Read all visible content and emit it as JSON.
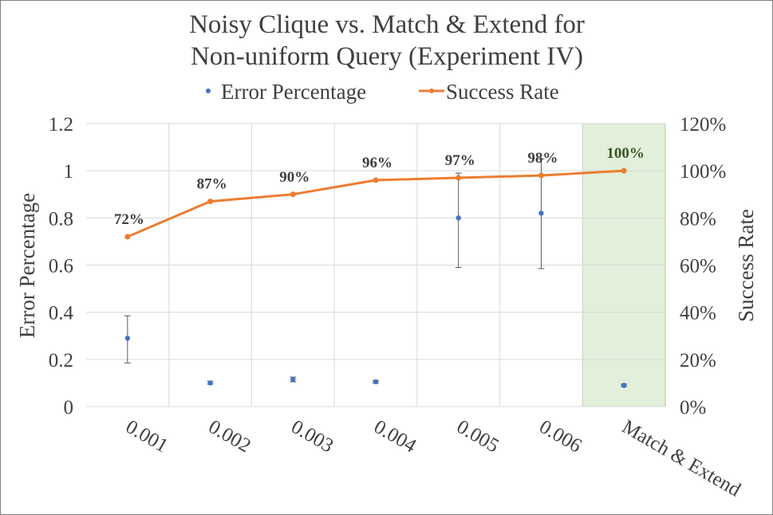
{
  "chart_data": {
    "type": "scatter",
    "title_line1": "Noisy Clique vs. Match & Extend for",
    "title_line2": "Non-uniform Query (Experiment IV)",
    "ylabel_left": "Error Percentage",
    "ylabel_right": "Success Rate",
    "categories": [
      "0.001",
      "0.002",
      "0.003",
      "0.004",
      "0.005",
      "0.006",
      "Match & Extend"
    ],
    "highlight_category": "Match & Extend",
    "highlight_color": "#e2efda",
    "legend_position": "top",
    "grid": true,
    "left_axis": {
      "min": 0,
      "max": 1.2,
      "step": 0.2,
      "ticks": [
        "0",
        "0.2",
        "0.4",
        "0.6",
        "0.8",
        "1",
        "1.2"
      ]
    },
    "right_axis": {
      "min": 0,
      "max": 120,
      "step": 20,
      "ticks": [
        "0%",
        "20%",
        "40%",
        "60%",
        "80%",
        "100%",
        "120%"
      ]
    },
    "series": [
      {
        "name": "Error Percentage",
        "kind": "scatter",
        "axis": "left",
        "color": "#4472c4",
        "values": [
          0.29,
          0.1,
          0.115,
          0.105,
          0.8,
          0.82,
          0.09
        ],
        "err_low": [
          0.185,
          0.095,
          0.105,
          0.1,
          0.59,
          0.585,
          0.085
        ],
        "err_high": [
          0.385,
          0.108,
          0.125,
          0.11,
          0.99,
          1.05,
          0.095
        ]
      },
      {
        "name": "Success Rate",
        "kind": "line",
        "axis": "right",
        "color": "#ed7d31",
        "values": [
          72,
          87,
          90,
          96,
          97,
          98,
          100
        ],
        "data_labels": [
          "72%",
          "87%",
          "90%",
          "96%",
          "97%",
          "98%",
          "100%"
        ]
      }
    ]
  }
}
